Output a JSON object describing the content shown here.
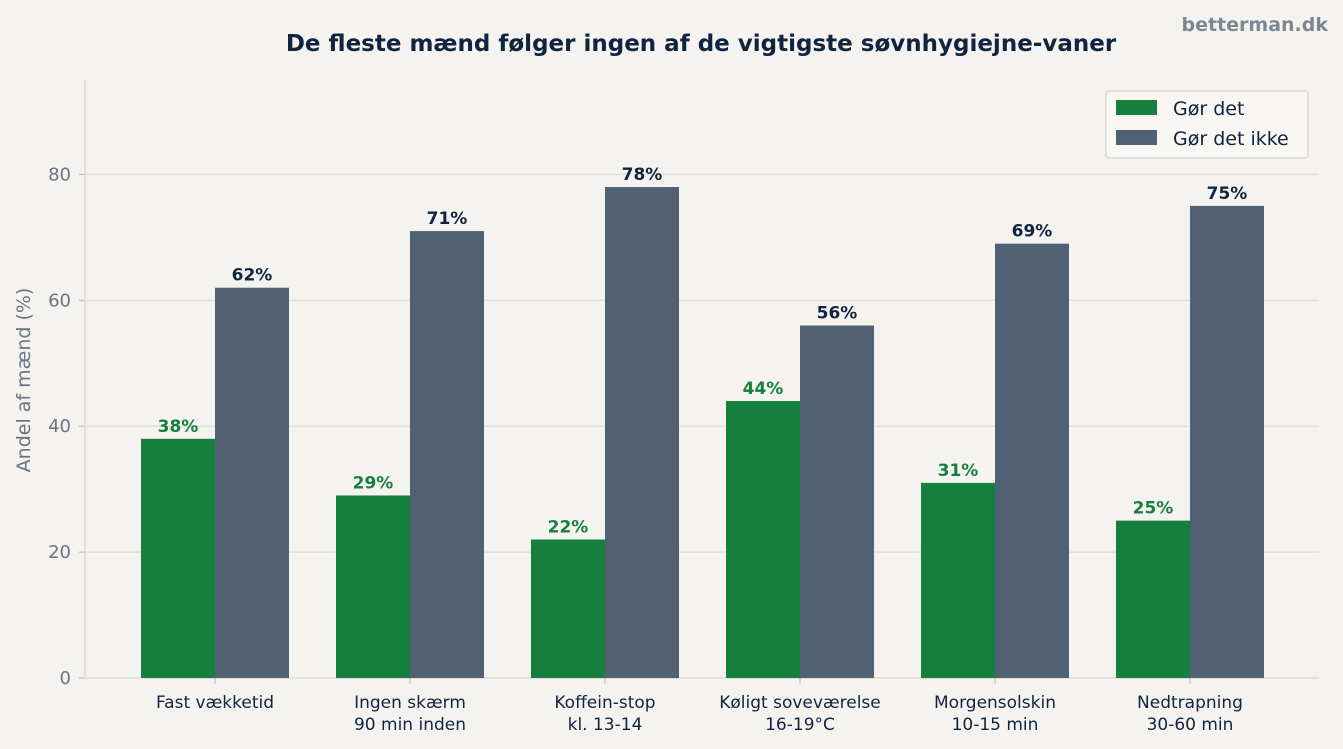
{
  "watermark": "betterman.dk",
  "colors": {
    "background": "#f4f3f0",
    "series_do": "#177f3d",
    "series_dont": "#4f6173",
    "title": "#10243f",
    "grid": "#e1dfd8"
  },
  "chart_data": {
    "type": "bar",
    "title": "De fleste mænd følger ingen af de vigtigste søvnhygiejne-vaner",
    "xlabel": "",
    "ylabel": "Andel af mænd (%)",
    "ylim": [
      0,
      95
    ],
    "yticks": [
      0,
      20,
      40,
      60,
      80
    ],
    "grid": "horizontal",
    "legend_position": "top-right",
    "value_suffix": "%",
    "categories": [
      [
        "Fast vækketid"
      ],
      [
        "Ingen skærm",
        "90 min inden"
      ],
      [
        "Koffein-stop",
        "kl. 13-14"
      ],
      [
        "Køligt soveværelse",
        "16-19°C"
      ],
      [
        "Morgensolskin",
        "10-15 min"
      ],
      [
        "Nedtrapning",
        "30-60 min"
      ]
    ],
    "series": [
      {
        "name": "Gør det",
        "color": "#177f3d",
        "values": [
          38,
          29,
          22,
          44,
          31,
          25
        ]
      },
      {
        "name": "Gør det ikke",
        "color": "#4f6173",
        "values": [
          62,
          71,
          78,
          56,
          69,
          75
        ]
      }
    ]
  }
}
